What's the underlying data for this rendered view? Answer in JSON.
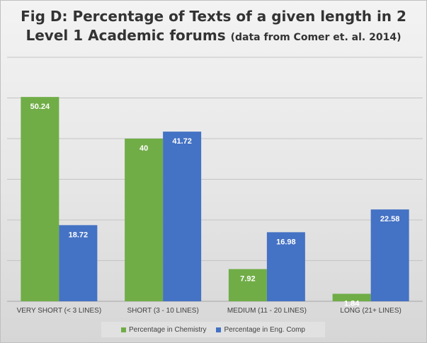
{
  "chart_data": {
    "type": "bar",
    "title_main_line1": "Fig D: Percentage of Texts of a given length in 2",
    "title_main_line2": "Level 1 Academic forums",
    "title_sub": "(data from Comer et. al. 2014)",
    "categories": [
      "VERY SHORT (< 3 LINES)",
      "SHORT (3 - 10 LINES)",
      "MEDIUM (11 - 20 LINES)",
      "LONG (21+ LINES)"
    ],
    "series": [
      {
        "name": "Percentage in Chemistry",
        "values": [
          50.24,
          40,
          7.92,
          1.84
        ],
        "color": "#70ad47"
      },
      {
        "name": "Percentage in Eng. Comp",
        "values": [
          18.72,
          41.72,
          16.98,
          22.58
        ],
        "color": "#4472c4"
      }
    ],
    "ylim": [
      0,
      60
    ],
    "grid": true,
    "y_tick_labels_visible": false,
    "data_labels": true,
    "legend_position": "bottom"
  }
}
